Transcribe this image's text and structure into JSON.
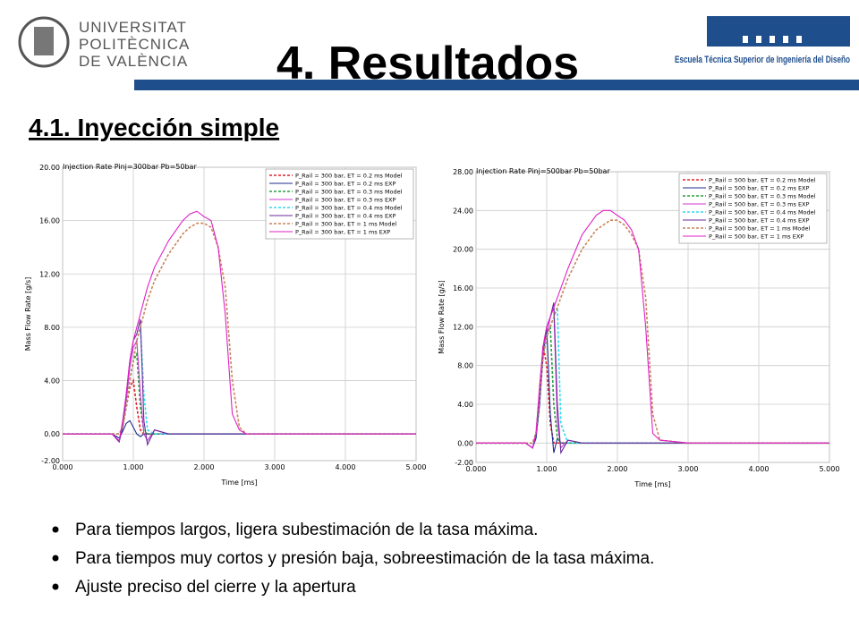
{
  "header": {
    "university": [
      "UNIVERSITAT",
      "POLITÈCNICA",
      "DE VALÈNCIA"
    ],
    "title": "4. Resultados",
    "school": "Escuela Técnica Superior de Ingeniería del Diseño"
  },
  "section": "4.1. Inyección simple",
  "bullets": [
    "Para tiempos largos, ligera subestimación de la tasa máxima.",
    "Para tiempos muy cortos y presión baja, sobreestimación de la tasa máxima.",
    "Ajuste preciso del cierre y la apertura"
  ],
  "chart_data": [
    {
      "type": "line",
      "title": "Injection Rate Pinj=300bar Pb=50bar",
      "x_label": "Time [ms]",
      "y_label": "Mass Flow Rate [g/s]",
      "grid": true,
      "legend": "upper right",
      "xlim": [
        0,
        5
      ],
      "xticks": [
        {
          "value": 0,
          "label": "0.000"
        },
        {
          "value": 1,
          "label": "1.000"
        },
        {
          "value": 2,
          "label": "2.000"
        },
        {
          "value": 3,
          "label": "3.000"
        },
        {
          "value": 4,
          "label": "4.000"
        },
        {
          "value": 5,
          "label": "5.000"
        }
      ],
      "ylim": [
        -2,
        20
      ],
      "yticks": [
        {
          "value": -2,
          "label": "-2.00"
        },
        {
          "value": 0,
          "label": "0.00"
        },
        {
          "value": 4,
          "label": "4.00"
        },
        {
          "value": 8,
          "label": "8.00"
        },
        {
          "value": 12,
          "label": "12.00"
        },
        {
          "value": 16,
          "label": "16.00"
        },
        {
          "value": 20,
          "label": "20.00"
        }
      ],
      "x": [
        0,
        0.5,
        0.7,
        0.8,
        0.85,
        0.9,
        0.95,
        1.0,
        1.05,
        1.1,
        1.15,
        1.2,
        1.3,
        1.5,
        1.7,
        1.8,
        1.9,
        2.0,
        2.1,
        2.2,
        2.3,
        2.4,
        2.5,
        2.6,
        3.0,
        5.0
      ],
      "series": [
        {
          "name": "P_Rail = 300 bar, ET = 0.2 ms Model",
          "color": "#e0202a",
          "dashed": true,
          "values": [
            0,
            0,
            0,
            0,
            0.5,
            2,
            3.5,
            4,
            2,
            0.3,
            0,
            0,
            0,
            0,
            0,
            0,
            0,
            0,
            0,
            0,
            0,
            0,
            0,
            0,
            0,
            0
          ]
        },
        {
          "name": "P_Rail = 300 bar, ET = 0.2 ms  EXP",
          "color": "#1c2a8c",
          "dashed": false,
          "values": [
            0,
            0,
            0,
            -0.3,
            0.2,
            0.8,
            1,
            0.5,
            0,
            -0.2,
            0,
            0,
            0,
            0,
            0,
            0,
            0,
            0,
            0,
            0,
            0,
            0,
            0,
            0,
            0,
            0
          ]
        },
        {
          "name": "P_Rail = 300 bar, ET = 0.3 ms Model",
          "color": "#22a03a",
          "dashed": true,
          "values": [
            0,
            0,
            0,
            0,
            0.5,
            2,
            4,
            5.5,
            6,
            2,
            0.2,
            0,
            0,
            0,
            0,
            0,
            0,
            0,
            0,
            0,
            0,
            0,
            0,
            0,
            0,
            0
          ]
        },
        {
          "name": "P_Rail = 300 bar, ET = 0.3 ms  EXP",
          "color": "#d03ad0",
          "dashed": false,
          "values": [
            0,
            0,
            0,
            -0.5,
            0.5,
            2.5,
            5,
            6.5,
            7,
            3,
            0,
            -0.5,
            0.3,
            0,
            0,
            0,
            0,
            0,
            0,
            0,
            0,
            0,
            0,
            0,
            0,
            0
          ]
        },
        {
          "name": "P_Rail = 300 bar, ET = 0.4 ms Model",
          "color": "#30d8f0",
          "dashed": true,
          "values": [
            0,
            0,
            0,
            0,
            0.5,
            2,
            4,
            5.5,
            7,
            8,
            3,
            0.3,
            0,
            0,
            0,
            0,
            0,
            0,
            0,
            0,
            0,
            0,
            0,
            0,
            0,
            0
          ]
        },
        {
          "name": "P_Rail = 300 bar, ET = 0.4 ms  EXP",
          "color": "#6a2a9a",
          "dashed": false,
          "values": [
            0,
            0,
            0,
            -0.6,
            0.5,
            3,
            5.5,
            7,
            7.5,
            8.6,
            1,
            -0.8,
            0.3,
            0,
            0,
            0,
            0,
            0,
            0,
            0,
            0,
            0,
            0,
            0,
            0,
            0
          ]
        },
        {
          "name": "P_Rail = 300 bar, ET = 1 ms Model",
          "color": "#c8845a",
          "dashed": true,
          "values": [
            0,
            0,
            0,
            0,
            0.5,
            2,
            4,
            5.5,
            7,
            8,
            9,
            10,
            11.5,
            13.5,
            15,
            15.5,
            15.8,
            15.8,
            15.5,
            14,
            11,
            4,
            0.5,
            0,
            0,
            0
          ]
        },
        {
          "name": "P_Rail = 300 bar, ET = 1 ms  EXP",
          "color": "#e020c8",
          "dashed": false,
          "values": [
            0,
            0,
            0,
            -0.5,
            1,
            3,
            5.5,
            7,
            8,
            9,
            10,
            11,
            12.5,
            14.5,
            16,
            16.5,
            16.7,
            16.3,
            16,
            14,
            9,
            1.5,
            0.3,
            0,
            0,
            0
          ]
        }
      ]
    },
    {
      "type": "line",
      "title": "Injection Rate Pinj=500bar Pb=50bar",
      "x_label": "Time [ms]",
      "y_label": "Mass Flow Rate [g/s]",
      "grid": true,
      "legend": "upper right",
      "xlim": [
        0,
        5
      ],
      "xticks": [
        {
          "value": 0,
          "label": "0.000"
        },
        {
          "value": 1,
          "label": "1.000"
        },
        {
          "value": 2,
          "label": "2.000"
        },
        {
          "value": 3,
          "label": "3.000"
        },
        {
          "value": 4,
          "label": "4.000"
        },
        {
          "value": 5,
          "label": "5.000"
        }
      ],
      "ylim": [
        -2,
        28
      ],
      "yticks": [
        {
          "value": -2,
          "label": "-2.00"
        },
        {
          "value": 0,
          "label": "0.00"
        },
        {
          "value": 4,
          "label": "4.00"
        },
        {
          "value": 8,
          "label": "8.00"
        },
        {
          "value": 12,
          "label": "12.00"
        },
        {
          "value": 16,
          "label": "16.00"
        },
        {
          "value": 20,
          "label": "20.00"
        },
        {
          "value": 24,
          "label": "24.00"
        },
        {
          "value": 28,
          "label": "28.00"
        }
      ],
      "x": [
        0,
        0.5,
        0.7,
        0.8,
        0.85,
        0.9,
        0.95,
        1.0,
        1.05,
        1.1,
        1.15,
        1.2,
        1.3,
        1.5,
        1.7,
        1.8,
        1.9,
        2.0,
        2.1,
        2.2,
        2.3,
        2.4,
        2.5,
        2.6,
        3.0,
        5.0
      ],
      "series": [
        {
          "name": "P_Rail = 500 bar, ET = 0.2 ms Model",
          "color": "#e0202a",
          "dashed": true,
          "values": [
            0,
            0,
            0,
            0,
            1,
            5,
            10,
            8,
            2,
            0,
            0,
            0,
            0,
            0,
            0,
            0,
            0,
            0,
            0,
            0,
            0,
            0,
            0,
            0,
            0,
            0
          ]
        },
        {
          "name": "P_Rail = 500 bar, ET = 0.2 ms  EXP",
          "color": "#1c2a8c",
          "dashed": false,
          "values": [
            0,
            0,
            0,
            -0.5,
            0.5,
            4,
            9,
            12,
            3,
            -1,
            0.5,
            0,
            0,
            0,
            0,
            0,
            0,
            0,
            0,
            0,
            0,
            0,
            0,
            0,
            0,
            0
          ]
        },
        {
          "name": "P_Rail = 500 bar, ET = 0.3 ms Model",
          "color": "#22a03a",
          "dashed": true,
          "values": [
            0,
            0,
            0,
            0,
            1,
            5,
            9,
            11,
            12,
            4,
            0.5,
            0,
            0,
            0,
            0,
            0,
            0,
            0,
            0,
            0,
            0,
            0,
            0,
            0,
            0,
            0
          ]
        },
        {
          "name": "P_Rail = 500 bar, ET = 0.3 ms  EXP",
          "color": "#d03ad0",
          "dashed": false,
          "values": [
            0,
            0,
            0,
            -0.5,
            1,
            5,
            10,
            11,
            13,
            14,
            2,
            -0.5,
            0.3,
            0,
            0,
            0,
            0,
            0,
            0,
            0,
            0,
            0,
            0,
            0,
            0,
            0
          ]
        },
        {
          "name": "P_Rail = 500 bar, ET = 0.4 ms Model",
          "color": "#30d8f0",
          "dashed": true,
          "values": [
            0,
            0,
            0,
            0,
            1,
            5,
            9,
            11,
            12,
            13,
            14,
            2,
            0,
            0,
            0,
            0,
            0,
            0,
            0,
            0,
            0,
            0,
            0,
            0,
            0,
            0
          ]
        },
        {
          "name": "P_Rail = 500 bar, ET = 0.4 ms  EXP",
          "color": "#6a2a9a",
          "dashed": false,
          "values": [
            0,
            0,
            0,
            -0.5,
            1,
            5.5,
            10,
            12,
            13,
            14.5,
            4,
            -1,
            0.3,
            0,
            0,
            0,
            0,
            0,
            0,
            0,
            0,
            0,
            0,
            0,
            0,
            0
          ]
        },
        {
          "name": "P_Rail = 500 bar, ET = 1 ms Model",
          "color": "#c8845a",
          "dashed": true,
          "values": [
            0,
            0,
            0,
            0,
            1,
            5,
            9,
            11,
            12,
            13,
            14,
            15,
            17,
            20,
            22,
            22.5,
            23,
            23,
            22.5,
            21.5,
            20,
            15,
            3,
            0.3,
            0,
            0
          ]
        },
        {
          "name": "P_Rail = 500 bar, ET = 1 ms  EXP",
          "color": "#e020c8",
          "dashed": false,
          "values": [
            0,
            0,
            0,
            -0.5,
            1,
            6,
            10,
            12,
            13,
            14,
            15,
            16,
            18,
            21.5,
            23.5,
            24,
            24,
            23.5,
            23,
            22,
            20,
            12,
            1,
            0.3,
            0,
            0
          ]
        }
      ]
    }
  ]
}
